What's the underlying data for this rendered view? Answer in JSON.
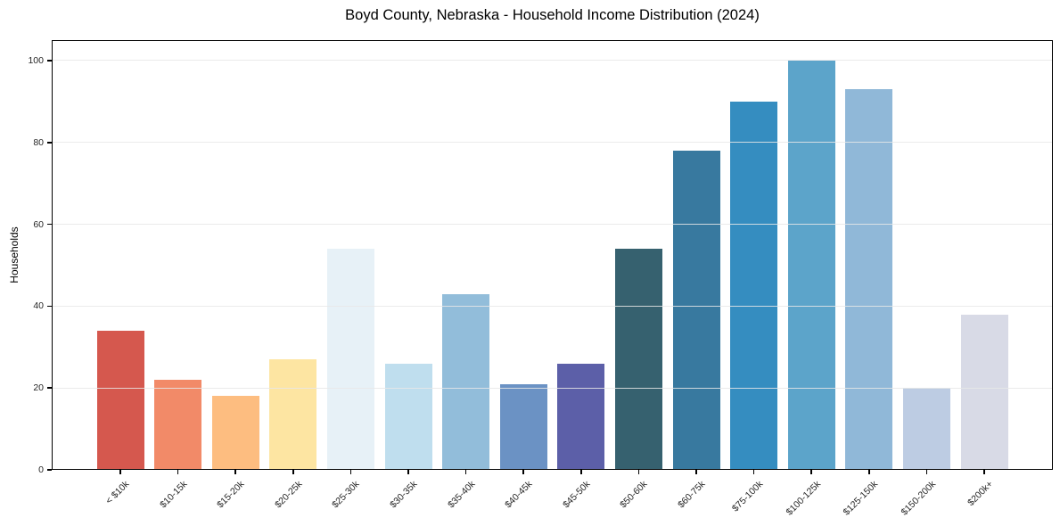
{
  "page": {
    "background": "#ffffff",
    "text_color": "#000000",
    "gridline_color": "#e7e7e7"
  },
  "chart_data": {
    "type": "bar",
    "title": "Boyd County, Nebraska - Household Income Distribution (2024)",
    "xlabel": "",
    "ylabel": "Households",
    "categories": [
      "< $10k",
      "$10-15k",
      "$15-20k",
      "$20-25k",
      "$25-30k",
      "$30-35k",
      "$35-40k",
      "$40-45k",
      "$45-50k",
      "$50-60k",
      "$60-75k",
      "$75-100k",
      "$100-125k",
      "$125-150k",
      "$150-200k",
      "$200k+"
    ],
    "values": [
      34,
      22,
      18,
      27,
      54,
      26,
      43,
      21,
      26,
      54,
      78,
      90,
      100,
      93,
      20,
      38
    ],
    "bar_colors": [
      "#d5584e",
      "#f28a68",
      "#fdbd80",
      "#fde5a2",
      "#e7f1f7",
      "#bfdeee",
      "#92bdda",
      "#6b92c4",
      "#5c5fa8",
      "#36616f",
      "#38799f",
      "#358dc0",
      "#5ca4ca",
      "#90b8d8",
      "#bdcce3",
      "#d8dae6"
    ],
    "ylim": [
      0,
      105
    ],
    "yticks": [
      0,
      20,
      40,
      60,
      80,
      100
    ],
    "grid": "horizontal",
    "legend": "none"
  }
}
